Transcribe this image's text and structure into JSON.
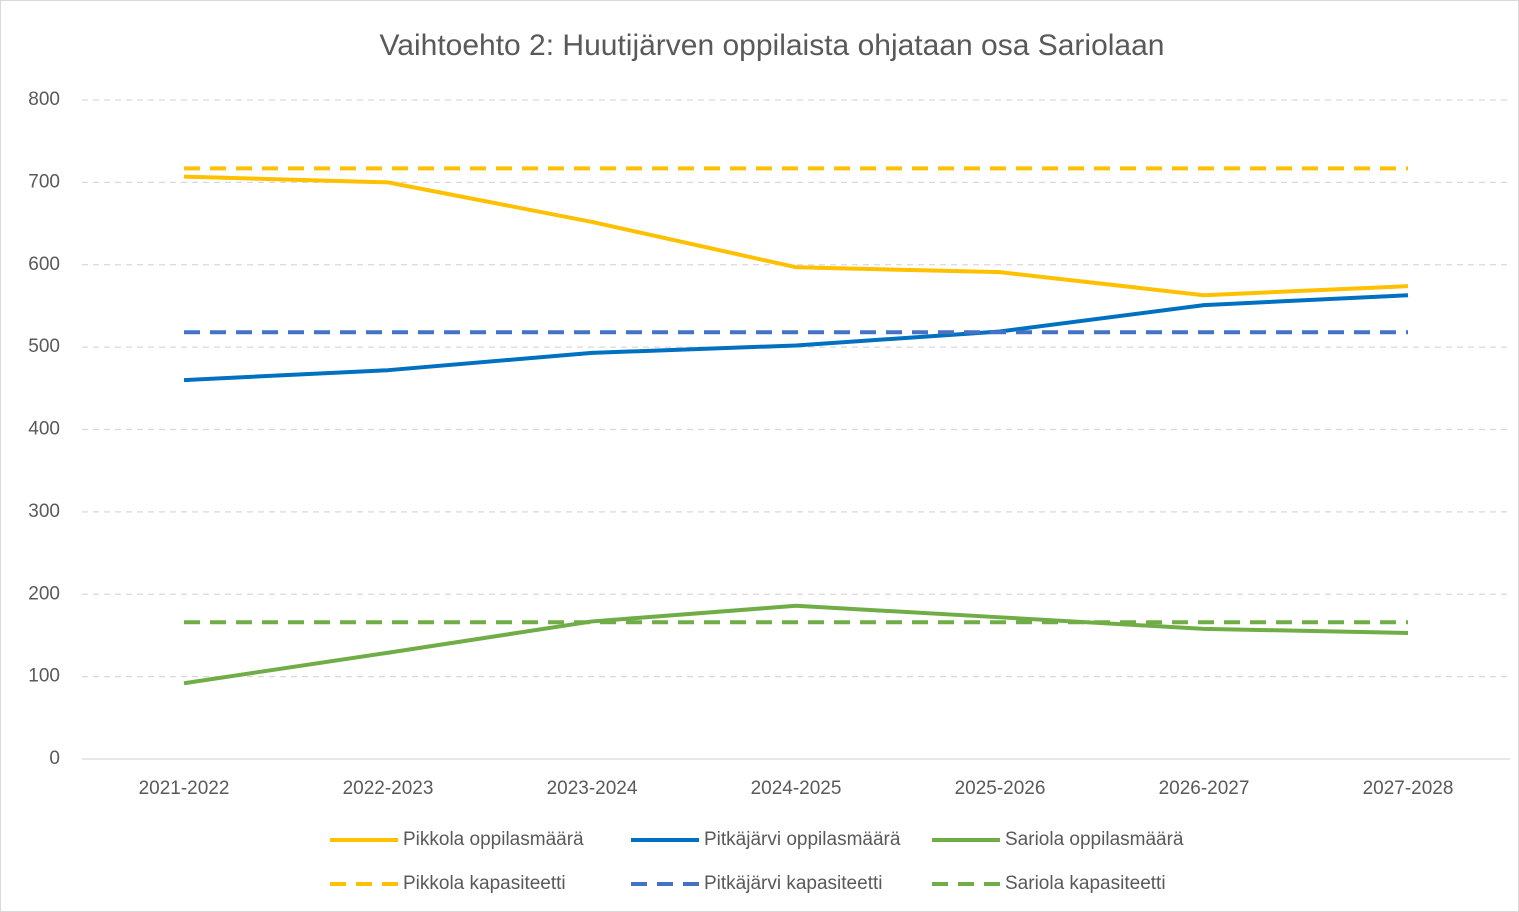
{
  "chart_data": {
    "type": "line",
    "title": "Vaihtoehto 2: Huutijärven oppilaista ohjataan osa Sariolaan",
    "categories": [
      "2021-2022",
      "2022-2023",
      "2023-2024",
      "2024-2025",
      "2025-2026",
      "2026-2027",
      "2027-2028"
    ],
    "series": [
      {
        "name": "Pikkola oppilasmäärä",
        "color": "#ffc000",
        "dashed": false,
        "values": [
          707,
          700,
          652,
          597,
          591,
          563,
          574
        ]
      },
      {
        "name": "Pitkäjärvi oppilasmäärä",
        "color": "#0070c0",
        "dashed": false,
        "values": [
          460,
          472,
          493,
          502,
          519,
          551,
          563
        ]
      },
      {
        "name": "Sariola oppilasmäärä",
        "color": "#70ad47",
        "dashed": false,
        "values": [
          92,
          129,
          167,
          186,
          172,
          158,
          153
        ]
      },
      {
        "name": "Pikkola kapasiteetti",
        "color": "#ffc000",
        "dashed": true,
        "values": [
          717,
          717,
          717,
          717,
          717,
          717,
          717
        ]
      },
      {
        "name": "Pitkäjärvi kapasiteetti",
        "color": "#4472c4",
        "dashed": true,
        "values": [
          518,
          518,
          518,
          518,
          518,
          518,
          518
        ]
      },
      {
        "name": "Sariola kapasiteetti",
        "color": "#70ad47",
        "dashed": true,
        "values": [
          166,
          166,
          166,
          166,
          166,
          166,
          166
        ]
      }
    ],
    "ylim": [
      0,
      800
    ],
    "yticks": [
      0,
      100,
      200,
      300,
      400,
      500,
      600,
      700,
      800
    ],
    "grid": true,
    "legend": "bottom"
  }
}
